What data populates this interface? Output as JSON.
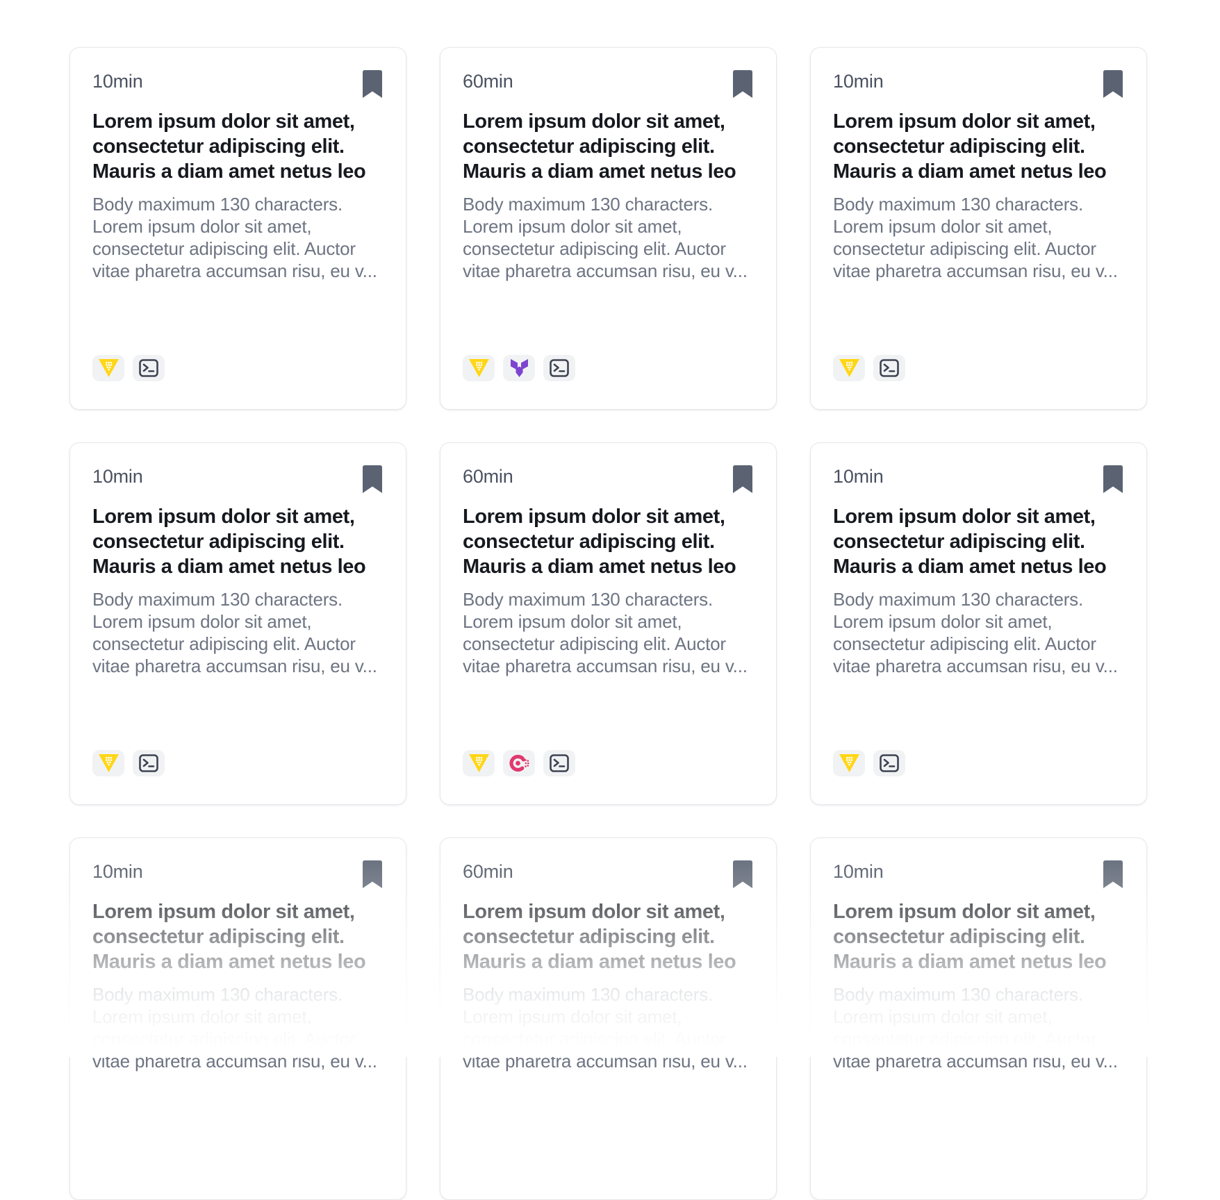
{
  "page": {
    "background": "#ffffff",
    "accent_colors": {
      "instruqt_yellow": "#ffd616",
      "terraform_purple": "#7d45cf",
      "consul_pink": "#e0396f",
      "terminal_gray": "#3d4452",
      "bookmark_gray": "#5b6372"
    }
  },
  "cards": [
    {
      "duration": "10min",
      "title": "Lorem ipsum dolor sit amet, consectetur adipiscing elit. Mauris a diam amet netus leo",
      "body": "Body maximum 130 characters. Lorem ipsum dolor sit amet, consectetur adipiscing elit. Auctor vitae pharetra accumsan risu, eu v...",
      "icons": [
        "instruqt-icon",
        "terminal-icon"
      ]
    },
    {
      "duration": "60min",
      "title": "Lorem ipsum dolor sit amet, consectetur adipiscing elit. Mauris a diam amet netus leo",
      "body": "Body maximum 130 characters. Lorem ipsum dolor sit amet, consectetur adipiscing elit. Auctor vitae pharetra accumsan risu, eu v...",
      "icons": [
        "instruqt-icon",
        "terraform-icon",
        "terminal-icon"
      ]
    },
    {
      "duration": "10min",
      "title": "Lorem ipsum dolor sit amet, consectetur adipiscing elit. Mauris a diam amet netus leo",
      "body": "Body maximum 130 characters. Lorem ipsum dolor sit amet, consectetur adipiscing elit. Auctor vitae pharetra accumsan risu, eu v...",
      "icons": [
        "instruqt-icon",
        "terminal-icon"
      ]
    },
    {
      "duration": "10min",
      "title": "Lorem ipsum dolor sit amet, consectetur adipiscing elit. Mauris a diam amet netus leo",
      "body": "Body maximum 130 characters. Lorem ipsum dolor sit amet, consectetur adipiscing elit. Auctor vitae pharetra accumsan risu, eu v...",
      "icons": [
        "instruqt-icon",
        "terminal-icon"
      ]
    },
    {
      "duration": "60min",
      "title": "Lorem ipsum dolor sit amet, consectetur adipiscing elit. Mauris a diam amet netus leo",
      "body": "Body maximum 130 characters. Lorem ipsum dolor sit amet, consectetur adipiscing elit. Auctor vitae pharetra accumsan risu, eu v...",
      "icons": [
        "instruqt-icon",
        "consul-icon",
        "terminal-icon"
      ]
    },
    {
      "duration": "10min",
      "title": "Lorem ipsum dolor sit amet, consectetur adipiscing elit. Mauris a diam amet netus leo",
      "body": "Body maximum 130 characters. Lorem ipsum dolor sit amet, consectetur adipiscing elit. Auctor vitae pharetra accumsan risu, eu v...",
      "icons": [
        "instruqt-icon",
        "terminal-icon"
      ]
    },
    {
      "duration": "10min",
      "title": "Lorem ipsum dolor sit amet, consectetur adipiscing elit. Mauris a diam amet netus leo",
      "body": "Body maximum 130 characters. Lorem ipsum dolor sit amet, consectetur adipiscing elit. Auctor vitae pharetra accumsan risu, eu v...",
      "icons": []
    },
    {
      "duration": "60min",
      "title": "Lorem ipsum dolor sit amet, consectetur adipiscing elit. Mauris a diam amet netus leo",
      "body": "Body maximum 130 characters. Lorem ipsum dolor sit amet, consectetur adipiscing elit. Auctor vitae pharetra accumsan risu, eu v...",
      "icons": []
    },
    {
      "duration": "10min",
      "title": "Lorem ipsum dolor sit amet, consectetur adipiscing elit. Mauris a diam amet netus leo",
      "body": "Body maximum 130 characters. Lorem ipsum dolor sit amet, consectetur adipiscing elit. Auctor vitae pharetra accumsan risu, eu v...",
      "icons": []
    }
  ]
}
